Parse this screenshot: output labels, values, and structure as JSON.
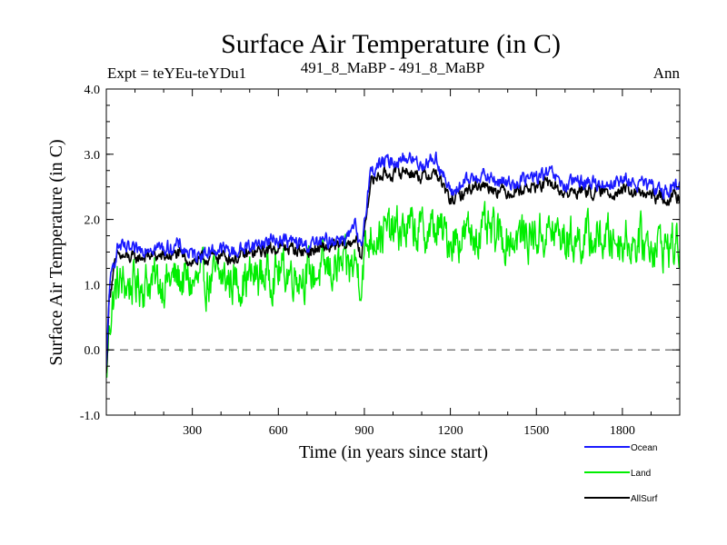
{
  "chart_data": {
    "type": "line",
    "title": "Surface Air Temperature (in C)",
    "left_header": "Expt = teYEu-teYDu1",
    "center_header": "491_8_MaBP - 491_8_MaBP",
    "right_header": "Ann",
    "xlabel": "Time (in years since start)",
    "ylabel": "Surface Air Temperature (in C)",
    "xlim": [
      0,
      2000
    ],
    "ylim": [
      -1.0,
      4.0
    ],
    "x_ticks": [
      300,
      600,
      900,
      1200,
      1500,
      1800
    ],
    "x_tick_labels": [
      "300",
      "600",
      "900",
      "1200",
      "1500",
      "1800"
    ],
    "y_ticks": [
      -1.0,
      0.0,
      1.0,
      2.0,
      3.0,
      4.0
    ],
    "y_tick_labels": [
      "-1.0",
      "0.0",
      "1.0",
      "2.0",
      "3.0",
      "4.0"
    ],
    "reference_line": 0.0,
    "series": [
      {
        "name": "Ocean",
        "color": "#1a1aff",
        "x": [
          0,
          10,
          25,
          40,
          60,
          100,
          150,
          200,
          250,
          300,
          350,
          400,
          450,
          500,
          550,
          600,
          650,
          700,
          750,
          800,
          850,
          870,
          880,
          890,
          900,
          920,
          950,
          1000,
          1050,
          1100,
          1150,
          1200,
          1250,
          1300,
          1350,
          1400,
          1450,
          1500,
          1550,
          1600,
          1650,
          1700,
          1750,
          1800,
          1850,
          1900,
          1950,
          2000
        ],
        "values": [
          -0.3,
          0.9,
          1.3,
          1.6,
          1.55,
          1.5,
          1.6,
          1.55,
          1.6,
          1.45,
          1.5,
          1.55,
          1.5,
          1.6,
          1.65,
          1.7,
          1.65,
          1.6,
          1.65,
          1.7,
          1.75,
          1.9,
          1.6,
          1.5,
          2.0,
          2.7,
          2.85,
          2.9,
          2.95,
          2.85,
          2.95,
          2.4,
          2.55,
          2.7,
          2.6,
          2.55,
          2.6,
          2.65,
          2.7,
          2.5,
          2.6,
          2.55,
          2.55,
          2.6,
          2.55,
          2.5,
          2.45,
          2.5
        ],
        "noise": 0.09
      },
      {
        "name": "Land",
        "color": "#00ee00",
        "x": [
          0,
          10,
          25,
          40,
          60,
          100,
          150,
          200,
          250,
          300,
          350,
          400,
          450,
          500,
          550,
          600,
          650,
          700,
          750,
          800,
          850,
          870,
          880,
          890,
          900,
          920,
          950,
          1000,
          1050,
          1100,
          1150,
          1200,
          1250,
          1300,
          1350,
          1400,
          1450,
          1500,
          1550,
          1600,
          1650,
          1700,
          1750,
          1800,
          1850,
          1900,
          1950,
          2000
        ],
        "values": [
          -0.5,
          0.4,
          0.8,
          1.0,
          1.0,
          1.0,
          1.05,
          1.05,
          1.1,
          1.0,
          1.05,
          1.1,
          1.05,
          1.1,
          1.15,
          1.2,
          1.2,
          1.15,
          1.2,
          1.25,
          1.25,
          1.35,
          1.2,
          1.1,
          1.45,
          1.75,
          1.8,
          1.8,
          1.85,
          1.8,
          1.85,
          1.7,
          1.75,
          1.8,
          1.75,
          1.7,
          1.75,
          1.75,
          1.8,
          1.7,
          1.7,
          1.7,
          1.7,
          1.7,
          1.65,
          1.65,
          1.6,
          1.6
        ],
        "noise": 0.28
      },
      {
        "name": "AllSurf",
        "color": "#000000",
        "x": [
          0,
          10,
          25,
          40,
          60,
          100,
          150,
          200,
          250,
          300,
          350,
          400,
          450,
          500,
          550,
          600,
          650,
          700,
          750,
          800,
          850,
          870,
          880,
          890,
          900,
          920,
          950,
          1000,
          1050,
          1100,
          1150,
          1200,
          1250,
          1300,
          1350,
          1400,
          1450,
          1500,
          1550,
          1600,
          1650,
          1700,
          1750,
          1800,
          1850,
          1900,
          1950,
          2000
        ],
        "values": [
          -0.4,
          0.8,
          1.2,
          1.45,
          1.42,
          1.4,
          1.45,
          1.42,
          1.47,
          1.35,
          1.4,
          1.45,
          1.4,
          1.47,
          1.52,
          1.58,
          1.55,
          1.5,
          1.55,
          1.58,
          1.62,
          1.75,
          1.5,
          1.4,
          1.85,
          2.55,
          2.68,
          2.7,
          2.75,
          2.65,
          2.72,
          2.28,
          2.42,
          2.55,
          2.48,
          2.42,
          2.47,
          2.5,
          2.55,
          2.38,
          2.45,
          2.42,
          2.42,
          2.45,
          2.4,
          2.36,
          2.32,
          2.36
        ],
        "noise": 0.08
      }
    ],
    "legend": [
      "Ocean",
      "Land",
      "AllSurf"
    ],
    "legend_position": "bottom-right"
  },
  "colors": {
    "zero_line": "#555555",
    "axis": "#000000"
  }
}
